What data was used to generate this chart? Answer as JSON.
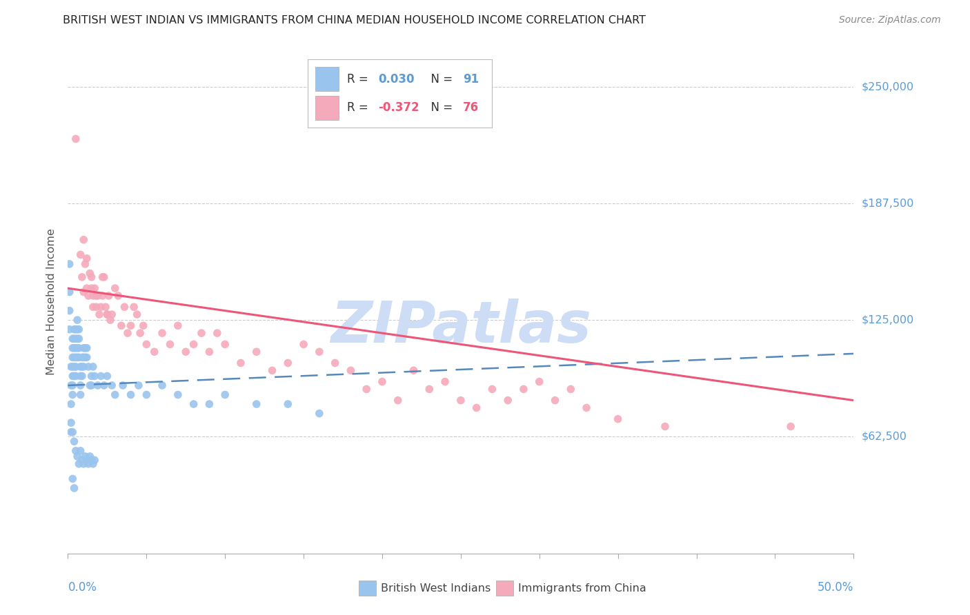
{
  "title": "BRITISH WEST INDIAN VS IMMIGRANTS FROM CHINA MEDIAN HOUSEHOLD INCOME CORRELATION CHART",
  "source": "Source: ZipAtlas.com",
  "ylabel": "Median Household Income",
  "xlim": [
    0.0,
    0.5
  ],
  "ylim": [
    0,
    270000
  ],
  "ytick_vals": [
    62500,
    125000,
    187500,
    250000
  ],
  "ytick_labels": [
    "$62,500",
    "$125,000",
    "$187,500",
    "$250,000"
  ],
  "blue_color": "#99C4EE",
  "pink_color": "#F5AABB",
  "line_blue_color": "#5588BB",
  "line_pink_color": "#EE5577",
  "watermark_color": "#CCDDF5",
  "label_color": "#5B9BD5",
  "text_color": "#333333",
  "blue_line_x0": 0.0,
  "blue_line_x1": 0.5,
  "blue_line_y0": 90000,
  "blue_line_y1": 107000,
  "pink_line_x0": 0.0,
  "pink_line_x1": 0.5,
  "pink_line_y0": 142000,
  "pink_line_y1": 82000,
  "blue_x": [
    0.001,
    0.001,
    0.001,
    0.001,
    0.002,
    0.002,
    0.002,
    0.002,
    0.002,
    0.003,
    0.003,
    0.003,
    0.003,
    0.003,
    0.003,
    0.003,
    0.004,
    0.004,
    0.004,
    0.004,
    0.004,
    0.004,
    0.005,
    0.005,
    0.005,
    0.005,
    0.005,
    0.005,
    0.006,
    0.006,
    0.006,
    0.006,
    0.006,
    0.007,
    0.007,
    0.007,
    0.007,
    0.008,
    0.008,
    0.008,
    0.008,
    0.009,
    0.009,
    0.009,
    0.01,
    0.01,
    0.01,
    0.011,
    0.011,
    0.012,
    0.012,
    0.013,
    0.014,
    0.015,
    0.015,
    0.016,
    0.017,
    0.019,
    0.021,
    0.023,
    0.025,
    0.028,
    0.03,
    0.035,
    0.04,
    0.045,
    0.05,
    0.06,
    0.07,
    0.08,
    0.09,
    0.1,
    0.12,
    0.14,
    0.16,
    0.003,
    0.004,
    0.005,
    0.006,
    0.007,
    0.008,
    0.009,
    0.01,
    0.011,
    0.012,
    0.013,
    0.014,
    0.015,
    0.016,
    0.017,
    0.003,
    0.004
  ],
  "blue_y": [
    155000,
    140000,
    130000,
    120000,
    100000,
    90000,
    80000,
    70000,
    65000,
    115000,
    110000,
    105000,
    100000,
    95000,
    90000,
    85000,
    120000,
    115000,
    110000,
    105000,
    100000,
    95000,
    120000,
    115000,
    110000,
    105000,
    100000,
    95000,
    125000,
    120000,
    115000,
    110000,
    105000,
    120000,
    115000,
    110000,
    105000,
    100000,
    95000,
    90000,
    85000,
    105000,
    100000,
    95000,
    110000,
    105000,
    100000,
    110000,
    105000,
    110000,
    105000,
    100000,
    90000,
    95000,
    90000,
    100000,
    95000,
    90000,
    95000,
    90000,
    95000,
    90000,
    85000,
    90000,
    85000,
    90000,
    85000,
    90000,
    85000,
    80000,
    80000,
    85000,
    80000,
    80000,
    75000,
    65000,
    60000,
    55000,
    52000,
    48000,
    55000,
    50000,
    48000,
    52000,
    50000,
    48000,
    52000,
    50000,
    48000,
    50000,
    40000,
    35000
  ],
  "pink_x": [
    0.005,
    0.008,
    0.009,
    0.01,
    0.011,
    0.012,
    0.013,
    0.014,
    0.015,
    0.016,
    0.016,
    0.017,
    0.018,
    0.019,
    0.02,
    0.021,
    0.022,
    0.023,
    0.024,
    0.025,
    0.026,
    0.027,
    0.028,
    0.03,
    0.032,
    0.034,
    0.036,
    0.038,
    0.04,
    0.042,
    0.044,
    0.046,
    0.048,
    0.05,
    0.055,
    0.06,
    0.065,
    0.07,
    0.075,
    0.08,
    0.085,
    0.09,
    0.095,
    0.1,
    0.11,
    0.12,
    0.13,
    0.14,
    0.15,
    0.16,
    0.17,
    0.18,
    0.19,
    0.2,
    0.21,
    0.22,
    0.23,
    0.24,
    0.25,
    0.26,
    0.27,
    0.28,
    0.29,
    0.3,
    0.31,
    0.32,
    0.33,
    0.35,
    0.38,
    0.46,
    0.01,
    0.012,
    0.015,
    0.018,
    0.022,
    0.025
  ],
  "pink_y": [
    222000,
    160000,
    148000,
    140000,
    155000,
    142000,
    138000,
    150000,
    142000,
    138000,
    132000,
    142000,
    132000,
    138000,
    128000,
    132000,
    138000,
    148000,
    132000,
    128000,
    138000,
    125000,
    128000,
    142000,
    138000,
    122000,
    132000,
    118000,
    122000,
    132000,
    128000,
    118000,
    122000,
    112000,
    108000,
    118000,
    112000,
    122000,
    108000,
    112000,
    118000,
    108000,
    118000,
    112000,
    102000,
    108000,
    98000,
    102000,
    112000,
    108000,
    102000,
    98000,
    88000,
    92000,
    82000,
    98000,
    88000,
    92000,
    82000,
    78000,
    88000,
    82000,
    88000,
    92000,
    82000,
    88000,
    78000,
    72000,
    68000,
    68000,
    168000,
    158000,
    148000,
    138000,
    148000,
    128000
  ]
}
